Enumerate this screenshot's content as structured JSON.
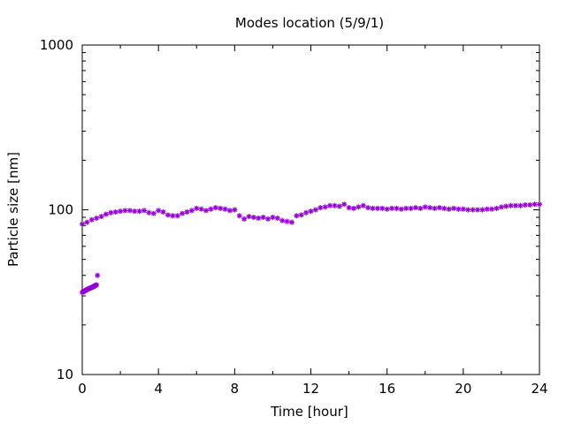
{
  "chart_data": {
    "type": "scatter",
    "title": "Modes location (5/9/1)",
    "xlabel": "Time [hour]",
    "ylabel": "Particle size [nm]",
    "xlim": [
      0,
      24
    ],
    "ylim": [
      10,
      1000
    ],
    "yscale": "log",
    "x_ticks": [
      0,
      4,
      8,
      12,
      16,
      20,
      24
    ],
    "x_tick_labels": [
      "0",
      "4",
      "8",
      "12",
      "16",
      "20",
      "24"
    ],
    "y_ticks": [
      10,
      100,
      1000
    ],
    "y_tick_labels": [
      "10",
      "100",
      "1000"
    ],
    "grid": false,
    "legend": "none",
    "marker_color": "#9400d3",
    "series": [
      {
        "x": [
          0.0,
          0.25,
          0.5,
          0.75,
          1.0,
          1.25,
          1.5,
          1.75,
          2.0,
          2.25,
          2.5,
          2.75,
          3.0,
          3.25,
          3.5,
          3.75,
          4.0,
          4.25,
          4.5,
          4.75,
          5.0,
          5.25,
          5.5,
          5.75,
          6.0,
          6.25,
          6.5,
          6.75,
          7.0,
          7.25,
          7.5,
          7.75,
          8.0,
          8.25,
          8.5,
          8.75,
          9.0,
          9.25,
          9.5,
          9.75,
          10.0,
          10.25,
          10.5,
          10.75,
          11.0,
          11.25,
          11.5,
          11.75,
          12.0,
          12.25,
          12.5,
          12.75,
          13.0,
          13.25,
          13.5,
          13.75,
          14.0,
          14.25,
          14.5,
          14.75,
          15.0,
          15.25,
          15.5,
          15.75,
          16.0,
          16.25,
          16.5,
          16.75,
          17.0,
          17.25,
          17.5,
          17.75,
          18.0,
          18.25,
          18.5,
          18.75,
          19.0,
          19.25,
          19.5,
          19.75,
          20.0,
          20.25,
          20.5,
          20.75,
          21.0,
          21.25,
          21.5,
          21.75,
          22.0,
          22.25,
          22.5,
          22.75,
          23.0,
          23.25,
          23.5,
          23.75,
          24.0
        ],
        "y": [
          82,
          84,
          87,
          89,
          91,
          94,
          96,
          97,
          98,
          99,
          99,
          98,
          98,
          99,
          96,
          95,
          99,
          97,
          93,
          92,
          92,
          95,
          97,
          99,
          102,
          101,
          99,
          101,
          103,
          102,
          101,
          99,
          100,
          92,
          88,
          91,
          90,
          89,
          90,
          88,
          90,
          89,
          86,
          85,
          84,
          92,
          93,
          96,
          98,
          100,
          103,
          104,
          106,
          106,
          105,
          108,
          103,
          102,
          104,
          106,
          103,
          102,
          102,
          102,
          101,
          102,
          102,
          101,
          102,
          102,
          103,
          102,
          104,
          103,
          102,
          103,
          102,
          101,
          102,
          101,
          101,
          100,
          100,
          100,
          100,
          101,
          101,
          102,
          104,
          105,
          106,
          106,
          106,
          107,
          107,
          108,
          108
        ]
      },
      {
        "x": [
          0.0,
          0.05,
          0.1,
          0.15,
          0.2,
          0.25,
          0.3,
          0.35,
          0.4,
          0.45,
          0.5,
          0.55,
          0.6,
          0.65,
          0.7,
          0.75,
          0.8
        ],
        "y": [
          31.5,
          31.8,
          32,
          32.3,
          32.5,
          32.8,
          33,
          33.2,
          33.4,
          33.6,
          33.8,
          34,
          34.2,
          34.5,
          34.8,
          35,
          40
        ]
      }
    ]
  }
}
